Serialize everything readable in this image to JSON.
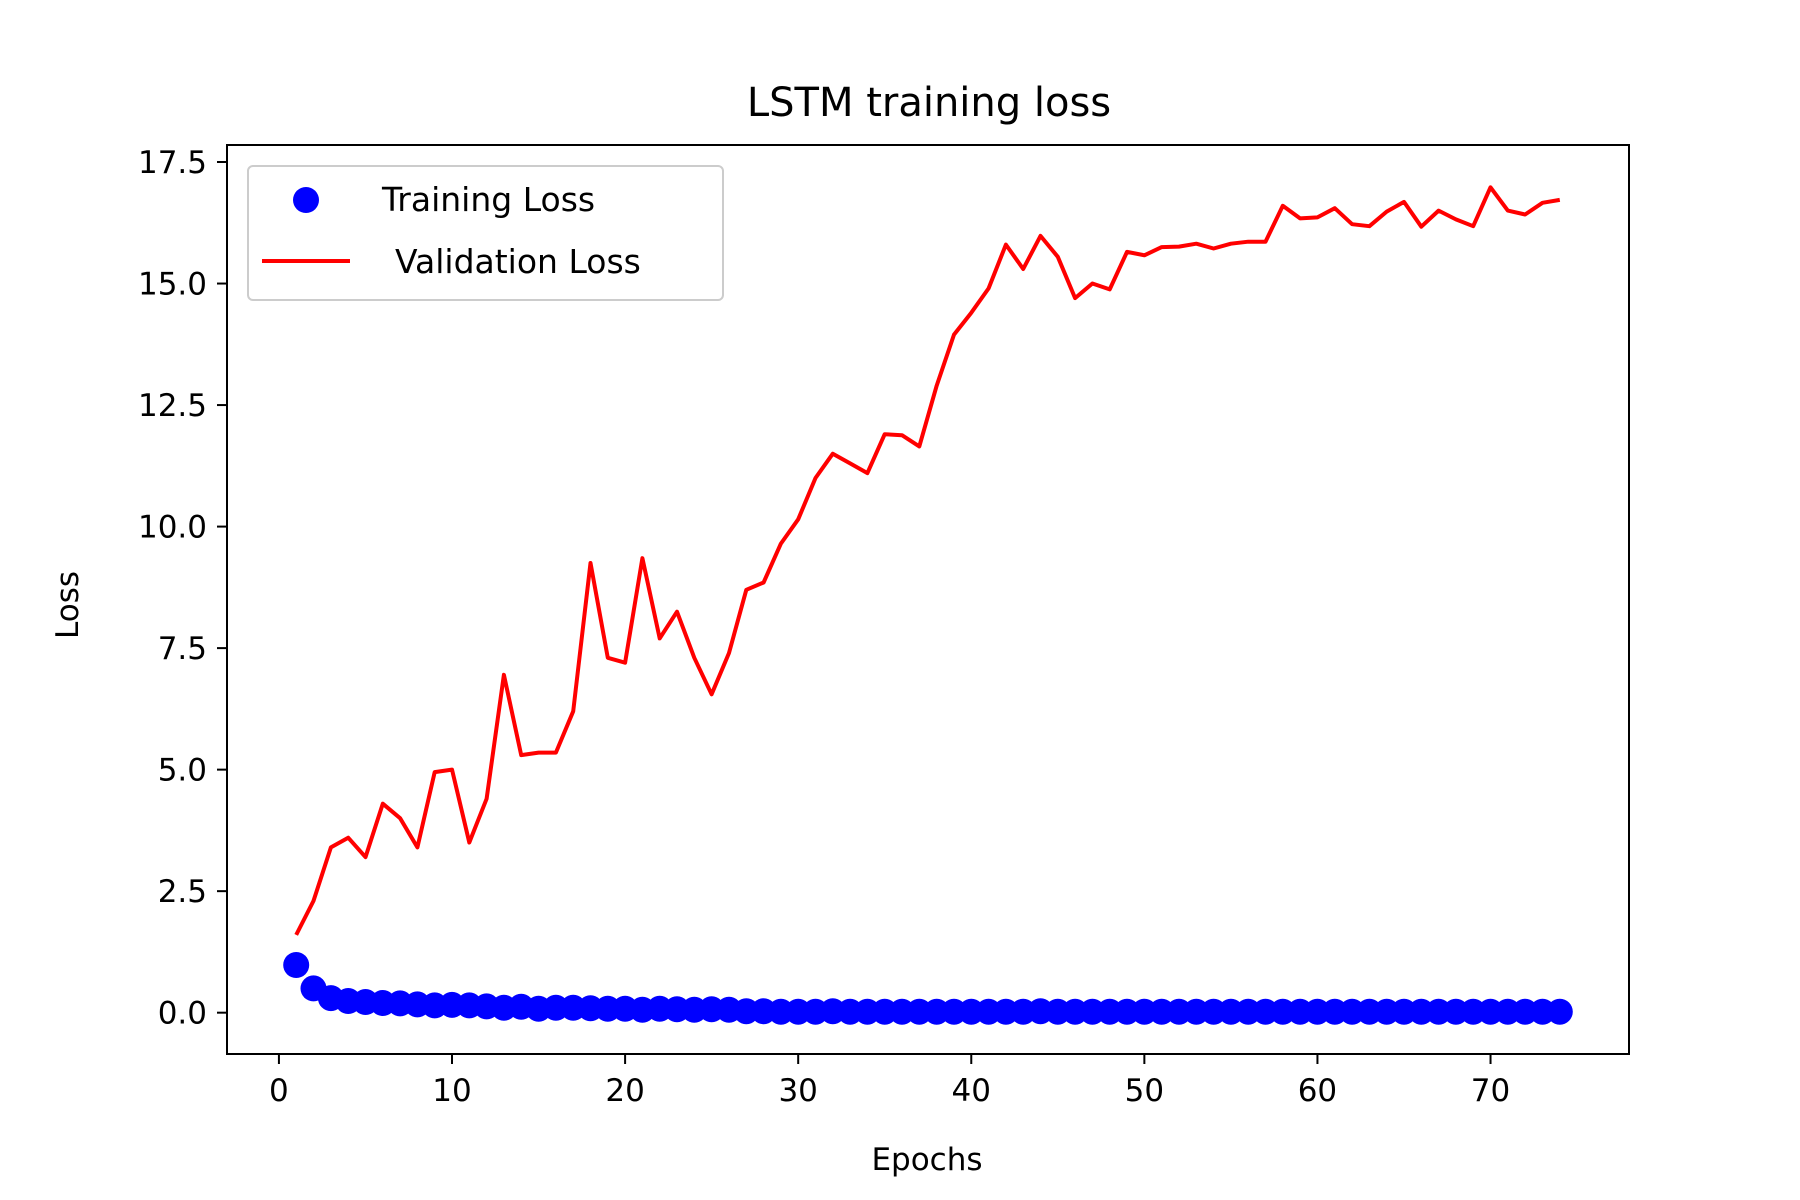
{
  "chart_data": {
    "type": "line",
    "title": "LSTM training loss",
    "xlabel": "Epochs",
    "ylabel": "Loss",
    "xlim": [
      -3,
      78
    ],
    "ylim": [
      -0.85,
      17.85
    ],
    "xticks": [
      0,
      10,
      20,
      30,
      40,
      50,
      60,
      70
    ],
    "yticks": [
      0.0,
      2.5,
      5.0,
      7.5,
      10.0,
      12.5,
      15.0,
      17.5
    ],
    "xtick_labels": [
      "0",
      "10",
      "20",
      "30",
      "40",
      "50",
      "60",
      "70"
    ],
    "ytick_labels": [
      "0.0",
      "2.5",
      "5.0",
      "7.5",
      "10.0",
      "12.5",
      "15.0",
      "17.5"
    ],
    "grid": false,
    "legend_position": "upper-left",
    "x": [
      1,
      2,
      3,
      4,
      5,
      6,
      7,
      8,
      9,
      10,
      11,
      12,
      13,
      14,
      15,
      16,
      17,
      18,
      19,
      20,
      21,
      22,
      23,
      24,
      25,
      26,
      27,
      28,
      29,
      30,
      31,
      32,
      33,
      34,
      35,
      36,
      37,
      38,
      39,
      40,
      41,
      42,
      43,
      44,
      45,
      46,
      47,
      48,
      49,
      50,
      51,
      52,
      53,
      54,
      55,
      56,
      57,
      58,
      59,
      60,
      61,
      62,
      63,
      64,
      65,
      66,
      67,
      68,
      69,
      70,
      71,
      72,
      73,
      74
    ],
    "series": [
      {
        "name": "Training Loss",
        "style": "markers",
        "color": "#0000ff",
        "values": [
          0.98,
          0.5,
          0.3,
          0.24,
          0.22,
          0.2,
          0.19,
          0.17,
          0.15,
          0.16,
          0.15,
          0.13,
          0.1,
          0.12,
          0.08,
          0.1,
          0.1,
          0.09,
          0.08,
          0.08,
          0.06,
          0.08,
          0.07,
          0.06,
          0.07,
          0.06,
          0.03,
          0.03,
          0.02,
          0.02,
          0.02,
          0.03,
          0.02,
          0.02,
          0.02,
          0.02,
          0.02,
          0.02,
          0.02,
          0.02,
          0.02,
          0.02,
          0.02,
          0.03,
          0.02,
          0.02,
          0.02,
          0.02,
          0.02,
          0.02,
          0.02,
          0.02,
          0.02,
          0.02,
          0.02,
          0.02,
          0.02,
          0.02,
          0.02,
          0.02,
          0.02,
          0.02,
          0.02,
          0.02,
          0.02,
          0.02,
          0.02,
          0.02,
          0.02,
          0.02,
          0.02,
          0.02,
          0.02,
          0.02
        ]
      },
      {
        "name": "Validation Loss",
        "style": "line",
        "color": "#ff0000",
        "values": [
          1.6,
          2.3,
          3.4,
          3.6,
          3.2,
          4.3,
          4.0,
          3.4,
          4.95,
          5.0,
          3.5,
          4.4,
          6.95,
          5.3,
          5.35,
          5.35,
          6.2,
          9.25,
          7.3,
          7.2,
          9.35,
          7.7,
          8.25,
          7.3,
          6.55,
          7.4,
          8.7,
          8.85,
          9.65,
          10.15,
          11.0,
          11.5,
          11.3,
          11.1,
          11.9,
          11.88,
          11.65,
          12.9,
          13.95,
          14.4,
          14.9,
          15.8,
          15.3,
          15.98,
          15.55,
          14.7,
          15.0,
          14.88,
          15.65,
          15.58,
          15.75,
          15.76,
          15.82,
          15.72,
          15.82,
          15.86,
          15.86,
          16.6,
          16.34,
          16.36,
          16.55,
          16.22,
          16.18,
          16.48,
          16.68,
          16.17,
          16.5,
          16.32,
          16.18,
          16.98,
          16.5,
          16.42,
          16.66,
          16.72
        ]
      }
    ]
  }
}
